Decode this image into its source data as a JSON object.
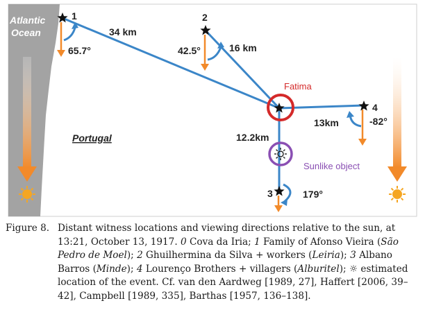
{
  "diagram": {
    "ocean_line1": "Atlantic",
    "ocean_line2": "Ocean",
    "country": "Portugal",
    "location_labels": [
      "1",
      "2",
      "4",
      "3"
    ],
    "distances": [
      "34 km",
      "16 km",
      "13km",
      "12.2km"
    ],
    "angles": [
      "65.7°",
      "42.5°",
      "-82°",
      "179°"
    ],
    "center_label": "Fatima",
    "object_label": "Sunlike object",
    "colors": {
      "rays": "#3b86c8",
      "arrows": "#f28a2a",
      "fatima_ring": "#d42a2a",
      "object_ring": "#8a4fb3",
      "coast": "#a3a3a3",
      "sun": "#f5a623"
    },
    "icons": [
      "star-icon",
      "sun-icon",
      "sunlike-object-icon",
      "down-arrow-icon"
    ]
  },
  "caption": {
    "label": "Figure 8.",
    "segments": [
      {
        "text": "Distant witness locations and viewing directions relative to the sun, at 13:21, October 13, 1917. ",
        "italic": false
      },
      {
        "text": "0",
        "italic": true
      },
      {
        "text": " Cova da Iria; ",
        "italic": false
      },
      {
        "text": "1",
        "italic": true
      },
      {
        "text": " Family of Afonso Vieira (",
        "italic": false
      },
      {
        "text": "São Pedro de Moel",
        "italic": true
      },
      {
        "text": "); ",
        "italic": false
      },
      {
        "text": "2",
        "italic": true
      },
      {
        "text": " Ghuilhermina da Silva + workers (",
        "italic": false
      },
      {
        "text": "Leiria",
        "italic": true
      },
      {
        "text": "); ",
        "italic": false
      },
      {
        "text": "3",
        "italic": true
      },
      {
        "text": " Albano Barros (",
        "italic": false
      },
      {
        "text": "Minde",
        "italic": true
      },
      {
        "text": "); ",
        "italic": false
      },
      {
        "text": "4",
        "italic": true
      },
      {
        "text": " Lourenço Brothers + villagers (",
        "italic": false
      },
      {
        "text": "Alburitel",
        "italic": true
      },
      {
        "text": "); ☼ estimated location of the event. Cf. van den Aardweg [1989, 27], Haffert [2006, 39–42], Campbell [1989, 335], Barthas [1957, 136–138].",
        "italic": false
      }
    ]
  }
}
